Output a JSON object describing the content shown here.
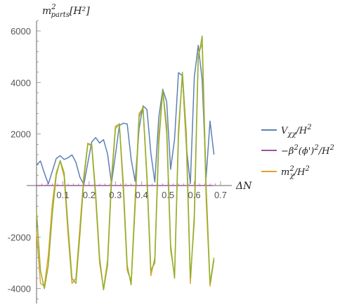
{
  "chart_data": {
    "type": "line",
    "ylabel": "m²_{parts}[H²]",
    "ylabel_main": "m",
    "ylabel_sup": "2",
    "ylabel_sub": "parts",
    "ylabel_bracket": "[H²]",
    "xlabel": "ΔN",
    "xlim": [
      0,
      0.7
    ],
    "ylim": [
      -4400,
      6400
    ],
    "x_ticks": [
      0.1,
      0.2,
      0.3,
      0.4,
      0.5,
      0.6,
      0.7
    ],
    "x_tick_labels": [
      "0.1",
      "0.2",
      "0.3",
      "0.4",
      "0.5",
      "0.6",
      "0.7"
    ],
    "y_ticks": [
      -4000,
      -2000,
      2000,
      4000,
      6000
    ],
    "y_tick_labels": [
      "-4000",
      "-2000",
      "2000",
      "4000",
      "6000"
    ],
    "grid": false,
    "legend_position": "right",
    "series": [
      {
        "name": "V_χχ/H²",
        "color": "#5E81B5",
        "x": [
          0.0,
          0.015,
          0.03,
          0.045,
          0.06,
          0.075,
          0.09,
          0.105,
          0.12,
          0.135,
          0.15,
          0.165,
          0.18,
          0.195,
          0.21,
          0.225,
          0.24,
          0.255,
          0.27,
          0.285,
          0.3,
          0.315,
          0.33,
          0.345,
          0.36,
          0.375,
          0.39,
          0.405,
          0.42,
          0.435,
          0.45,
          0.465,
          0.48,
          0.495,
          0.51,
          0.525,
          0.54,
          0.555,
          0.57,
          0.585,
          0.6,
          0.615,
          0.63,
          0.645,
          0.66,
          0.675
        ],
        "y": [
          800,
          950,
          480,
          60,
          560,
          1050,
          1160,
          1010,
          1080,
          1190,
          900,
          320,
          40,
          880,
          1690,
          1860,
          1650,
          1780,
          1230,
          80,
          1180,
          2330,
          2420,
          2390,
          1020,
          160,
          2210,
          3090,
          2950,
          1250,
          140,
          2640,
          3740,
          3250,
          630,
          1800,
          4380,
          4260,
          1500,
          80,
          4200,
          5440,
          4100,
          300,
          2500,
          1200
        ]
      },
      {
        "name": "-β²(ϕ')²/H²",
        "color": "#A0519F",
        "x": [
          0.0,
          0.67
        ],
        "y": [
          0,
          0
        ]
      },
      {
        "name": "m²_χ/H²",
        "color": "#E1A22F",
        "x": [
          0.0,
          0.015,
          0.03,
          0.045,
          0.06,
          0.075,
          0.09,
          0.105,
          0.12,
          0.135,
          0.15,
          0.165,
          0.18,
          0.195,
          0.21,
          0.225,
          0.24,
          0.255,
          0.27,
          0.285,
          0.3,
          0.315,
          0.33,
          0.345,
          0.36,
          0.375,
          0.39,
          0.405,
          0.42,
          0.435,
          0.45,
          0.465,
          0.48,
          0.495,
          0.51,
          0.525,
          0.54,
          0.555,
          0.57,
          0.585,
          0.6,
          0.615,
          0.63,
          0.645,
          0.66,
          0.675
        ],
        "y": [
          -1800,
          -3800,
          -3900,
          -2700,
          -700,
          500,
          950,
          350,
          -1900,
          -3800,
          -3600,
          -1600,
          400,
          1650,
          1500,
          -500,
          -3000,
          -4000,
          -2900,
          300,
          2300,
          2380,
          -200,
          -3300,
          -3700,
          -500,
          2800,
          3000,
          200,
          -3500,
          -2800,
          1900,
          3700,
          2000,
          -2500,
          -3500,
          2200,
          4300,
          1600,
          -3800,
          -1100,
          5100,
          5500,
          -500,
          -3900,
          -2900
        ]
      },
      {
        "name": "green",
        "color": "#8FB131",
        "x": [
          0.0,
          0.015,
          0.03,
          0.045,
          0.06,
          0.075,
          0.09,
          0.105,
          0.12,
          0.135,
          0.15,
          0.165,
          0.18,
          0.195,
          0.21,
          0.225,
          0.24,
          0.255,
          0.27,
          0.285,
          0.3,
          0.315,
          0.33,
          0.345,
          0.36,
          0.375,
          0.39,
          0.405,
          0.42,
          0.435,
          0.45,
          0.465,
          0.48,
          0.495,
          0.51,
          0.525,
          0.54,
          0.555,
          0.57,
          0.585,
          0.6,
          0.615,
          0.63,
          0.645,
          0.66,
          0.675
        ],
        "y": [
          -1000,
          -3300,
          -4000,
          -3100,
          -1100,
          400,
          970,
          500,
          -1600,
          -3600,
          -3800,
          -1900,
          250,
          1600,
          1600,
          -300,
          -2800,
          -4050,
          -3100,
          100,
          2200,
          2400,
          100,
          -3100,
          -3850,
          -800,
          2650,
          3050,
          400,
          -3300,
          -3000,
          1600,
          3700,
          2300,
          -2300,
          -3600,
          1900,
          4400,
          2000,
          -3600,
          -1400,
          4900,
          5800,
          0,
          -3800,
          -2800
        ]
      }
    ],
    "legend": [
      "V_χχ/H²",
      "-β²(ϕ')²/H²",
      "m²_χ/H²"
    ]
  },
  "legend_items": [
    {
      "main": "V",
      "sub": "χχ",
      "rest": "/H",
      "sup": "2",
      "color": "#5E81B5"
    },
    {
      "main": "−β",
      "sup": "2",
      "rest": "(ϕ')",
      "sup2": "2",
      "tail": "/H",
      "sup3": "2",
      "color": "#A0519F"
    },
    {
      "main": "m",
      "sup": "2",
      "sub": "χ",
      "rest": "/H",
      "sup2": "2",
      "color": "#E1A22F"
    }
  ]
}
